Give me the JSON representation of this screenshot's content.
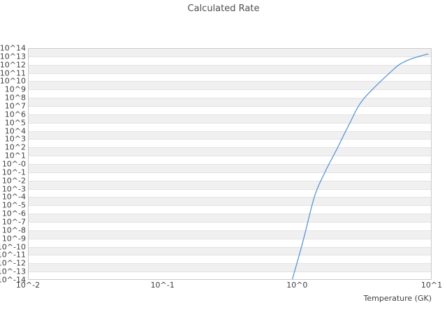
{
  "title": "Calculated Rate",
  "colors": {
    "background": "#ffffff",
    "title_text": "#4f4f4f",
    "tick_text": "#404040",
    "band_gray": "#f0f0f0",
    "band_white": "#ffffff",
    "gridline": "#e3e3e3",
    "plot_border": "#c9c9c9",
    "line": "#5b96d6"
  },
  "chart_data": {
    "type": "line",
    "title": "Calculated Rate",
    "xlabel": "Temperature (GK)",
    "ylabel": "",
    "x_scale": "log",
    "y_scale": "log",
    "xlim_log10": [
      -2,
      1
    ],
    "ylim_log10": [
      -14,
      14
    ],
    "grid": "horizontal decade gridlines with alternating gray/white bands, no vertical gridlines",
    "legend": "none",
    "x_ticks": [
      {
        "label": "10^-2",
        "log10": -2
      },
      {
        "label": "10^-1",
        "log10": -1
      },
      {
        "label": "10^0",
        "log10": 0
      },
      {
        "label": "10^1",
        "log10": 1
      }
    ],
    "y_ticks": [
      {
        "label": "10^14",
        "log10": 14
      },
      {
        "label": "10^13",
        "log10": 13
      },
      {
        "label": "10^12",
        "log10": 12
      },
      {
        "label": "10^11",
        "log10": 11
      },
      {
        "label": "10^10",
        "log10": 10
      },
      {
        "label": "10^9",
        "log10": 9
      },
      {
        "label": "10^8",
        "log10": 8
      },
      {
        "label": "10^7",
        "log10": 7
      },
      {
        "label": "10^6",
        "log10": 6
      },
      {
        "label": "10^5",
        "log10": 5
      },
      {
        "label": "10^4",
        "log10": 4
      },
      {
        "label": "10^3",
        "log10": 3
      },
      {
        "label": "10^2",
        "log10": 2
      },
      {
        "label": "10^1",
        "log10": 1
      },
      {
        "label": "10^-0",
        "log10": 0
      },
      {
        "label": "10^-1",
        "log10": -1
      },
      {
        "label": "10^-2",
        "log10": -2
      },
      {
        "label": "10^-3",
        "log10": -3
      },
      {
        "label": "10^-4",
        "log10": -4
      },
      {
        "label": "10^-5",
        "log10": -5
      },
      {
        "label": "10^-6",
        "log10": -6
      },
      {
        "label": "10^-7",
        "log10": -7
      },
      {
        "label": "10^-8",
        "log10": -8
      },
      {
        "label": "10^-9",
        "log10": -9
      },
      {
        "label": "10^-10",
        "log10": -10
      },
      {
        "label": "10^-11",
        "log10": -11
      },
      {
        "label": "10^-12",
        "log10": -12
      },
      {
        "label": "10^-13",
        "log10": -13
      },
      {
        "label": "10^-14",
        "log10": -14
      }
    ],
    "series": [
      {
        "name": "calculated-rate",
        "x_temperature_GK": [
          0.92,
          1.1,
          1.35,
          1.61,
          1.99,
          2.44,
          3.1,
          5.18,
          6.35,
          8.05,
          9.42
        ],
        "log10_rate": [
          -14.0,
          -9.5,
          -3.9,
          -1.0,
          1.9,
          4.8,
          7.8,
          11.4,
          12.4,
          13.0,
          13.3
        ]
      }
    ]
  }
}
